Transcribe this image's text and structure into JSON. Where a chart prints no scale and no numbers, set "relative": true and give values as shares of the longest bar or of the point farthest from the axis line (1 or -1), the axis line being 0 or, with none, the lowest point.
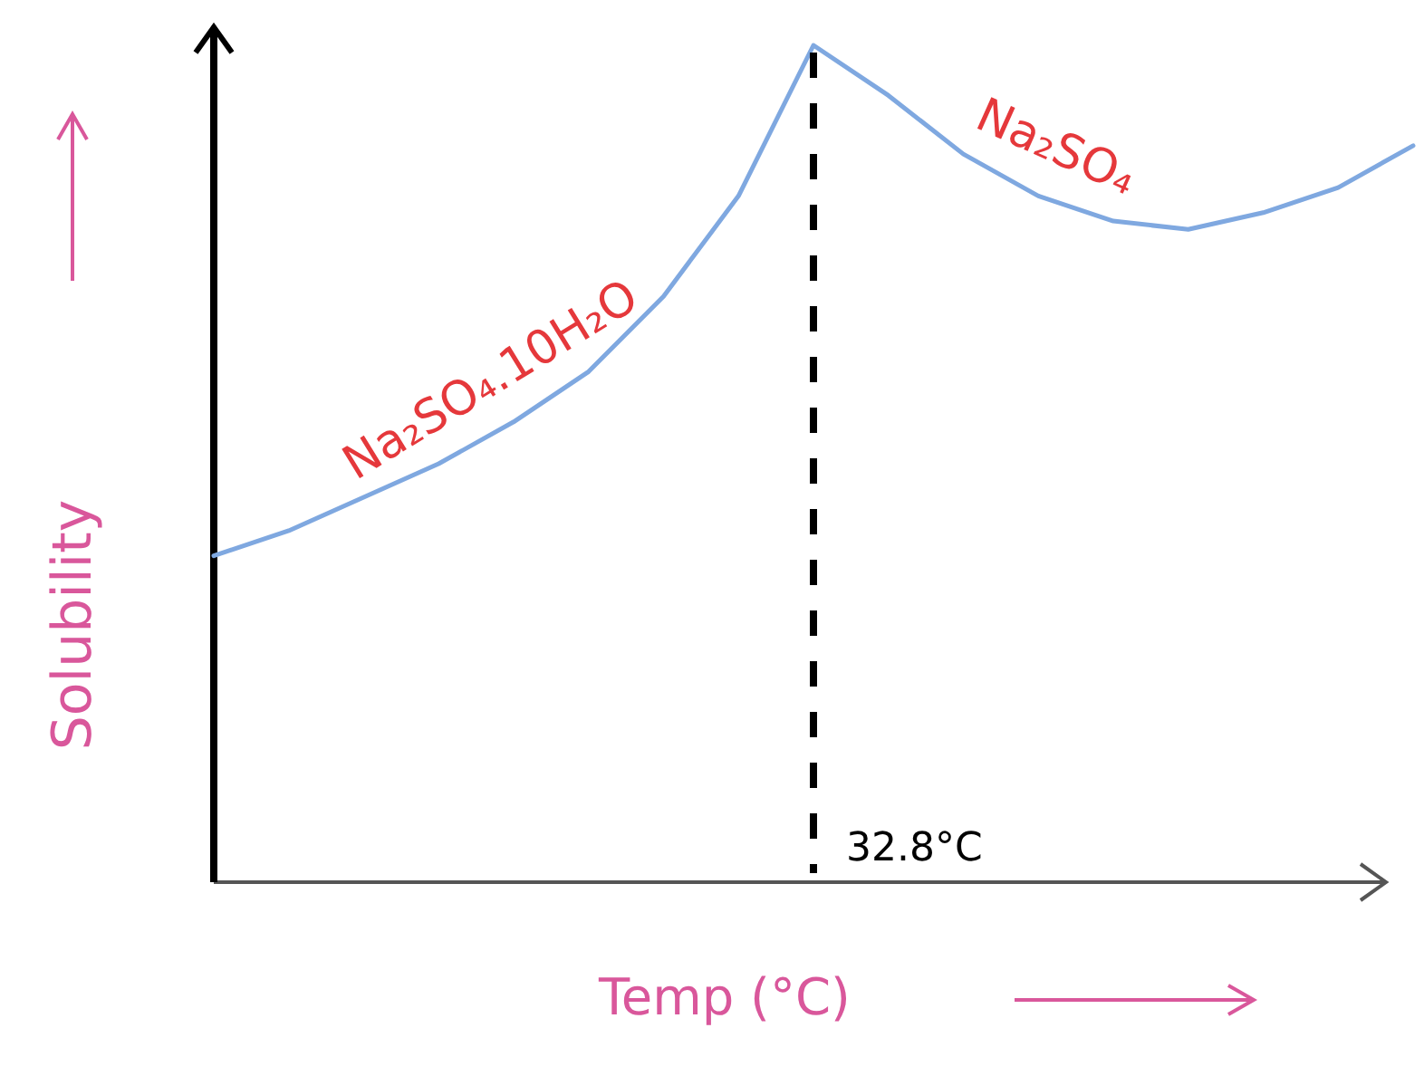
{
  "chart_data": {
    "type": "line",
    "xlabel": "Temp (°C)",
    "ylabel": "Solubility",
    "relative": true,
    "marker": "none",
    "line_style": "solid",
    "categories": [
      null,
      null,
      null,
      null,
      null,
      null,
      null,
      null,
      null,
      null,
      null,
      null,
      null,
      null,
      null,
      null,
      null
    ],
    "series": [
      {
        "color": "#7fa8e0",
        "values": [
          0.39,
          0.42,
          0.46,
          0.5,
          0.55,
          0.61,
          0.7,
          0.82,
          1,
          0.94,
          0.87,
          0.82,
          0.79,
          0.78,
          0.8,
          0.83,
          0.88
        ]
      }
    ],
    "annotations": [
      "32.8°C",
      "Na₂SO₄.10H₂O",
      "Na₂SO₄"
    ]
  }
}
